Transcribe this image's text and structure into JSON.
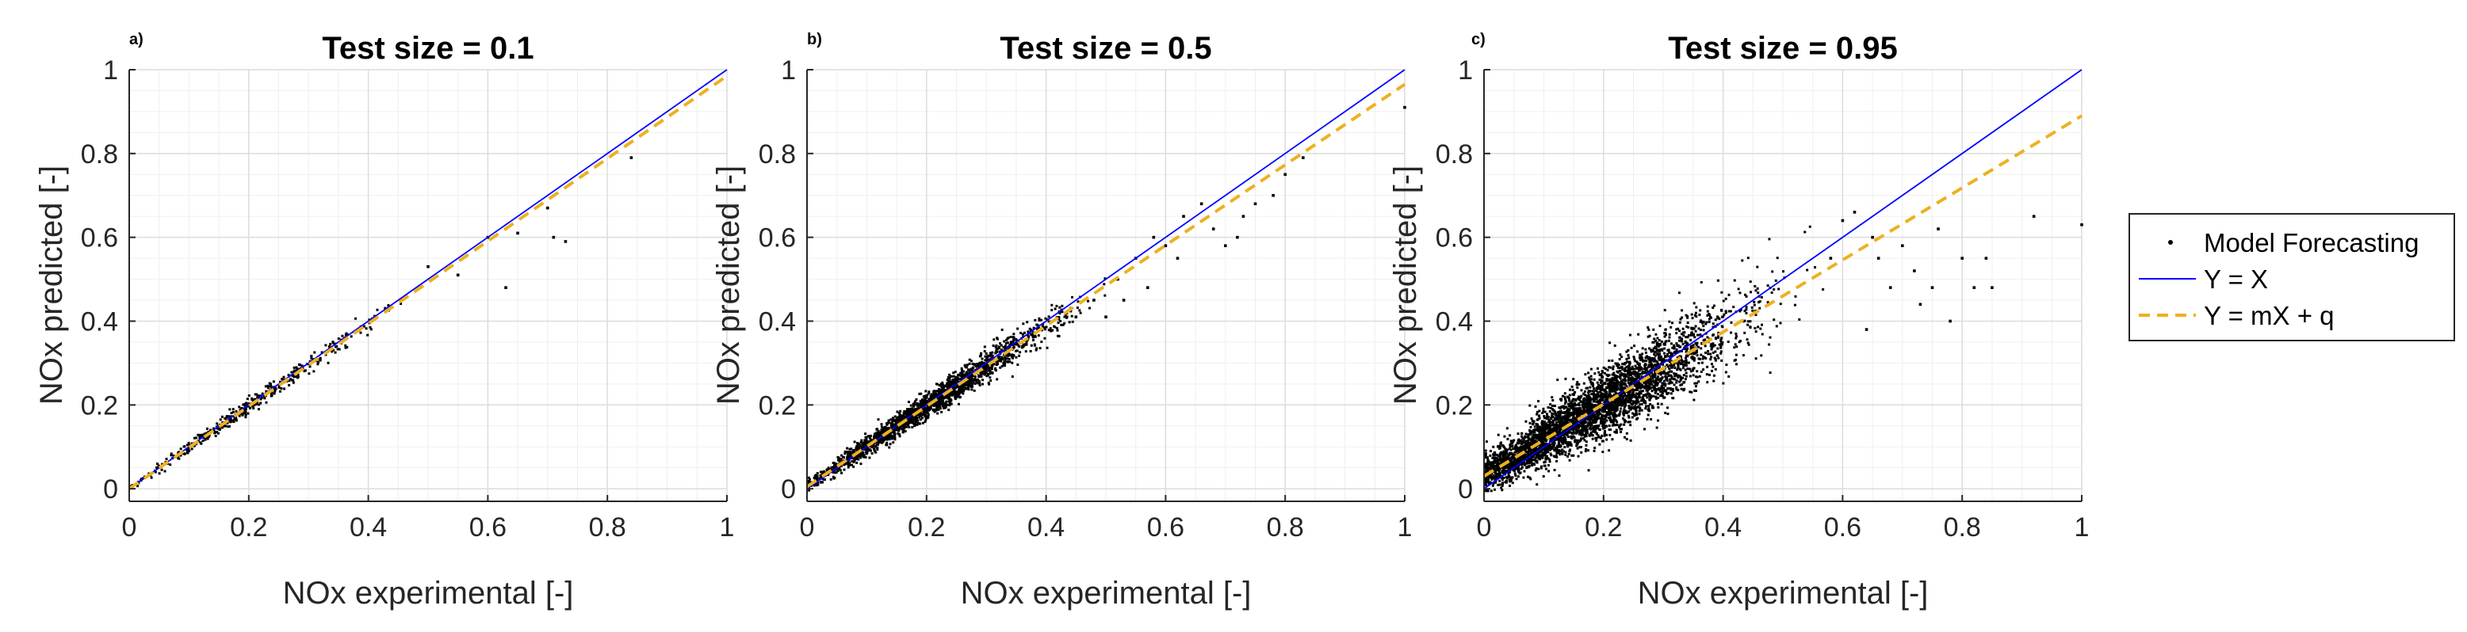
{
  "figure": {
    "background": "#ffffff"
  },
  "colors": {
    "yx_line": "#0000ff",
    "fit_line": "#edb120",
    "points": "#000000",
    "grid_major": "#dcdcdc",
    "grid_minor": "#efefef",
    "axis": "#262626"
  },
  "legend": {
    "location": "east-outside",
    "items": [
      {
        "label": "Model Forecasting",
        "style": "dot"
      },
      {
        "label": "Y = X",
        "style": "solid"
      },
      {
        "label": "Y = mX + q",
        "style": "dashed"
      }
    ]
  },
  "chart_data": [
    {
      "panel_letter": "a)",
      "type": "scatter",
      "title": "Test size = 0.1",
      "xlabel": "NOx experimental [-]",
      "ylabel": "NOx predicted [-]",
      "xlim": [
        0,
        1
      ],
      "ylim": [
        -0.03,
        1
      ],
      "xticks": [
        0,
        0.2,
        0.4,
        0.6,
        0.8,
        1
      ],
      "xtick_labels": [
        "0",
        "0.2",
        "0.4",
        "0.6",
        "0.8",
        "1"
      ],
      "yticks": [
        0,
        0.2,
        0.4,
        0.6,
        0.8,
        1
      ],
      "ytick_labels": [
        "0",
        "0.2",
        "0.4",
        "0.6",
        "0.8",
        "1"
      ],
      "grid": true,
      "series": [
        {
          "name": "Model Forecasting",
          "kind": "points",
          "n_points": 400,
          "spread": 0.014,
          "x_mean": 0.2,
          "x_sd": 0.1,
          "x_max": 0.46,
          "seed": 11,
          "outliers": [
            [
              0.5,
              0.53
            ],
            [
              0.55,
              0.51
            ],
            [
              0.6,
              0.6
            ],
            [
              0.63,
              0.48
            ],
            [
              0.65,
              0.61
            ],
            [
              0.7,
              0.67
            ],
            [
              0.71,
              0.6
            ],
            [
              0.73,
              0.59
            ],
            [
              0.84,
              0.79
            ]
          ]
        },
        {
          "name": "Y = X",
          "kind": "line",
          "slope": 1,
          "intercept": 0
        },
        {
          "name": "Y = mX + q",
          "kind": "line",
          "slope": 0.985,
          "intercept": 0.0
        }
      ]
    },
    {
      "panel_letter": "b)",
      "type": "scatter",
      "title": "Test size = 0.5",
      "xlabel": "NOx experimental [-]",
      "ylabel": "NOx predicted [-]",
      "xlim": [
        0,
        1
      ],
      "ylim": [
        -0.03,
        1
      ],
      "xticks": [
        0,
        0.2,
        0.4,
        0.6,
        0.8,
        1
      ],
      "xtick_labels": [
        "0",
        "0.2",
        "0.4",
        "0.6",
        "0.8",
        "1"
      ],
      "yticks": [
        0,
        0.2,
        0.4,
        0.6,
        0.8,
        1
      ],
      "ytick_labels": [
        "0",
        "0.2",
        "0.4",
        "0.6",
        "0.8",
        "1"
      ],
      "grid": true,
      "series": [
        {
          "name": "Model Forecasting",
          "kind": "points",
          "n_points": 2000,
          "spread": 0.024,
          "x_mean": 0.2,
          "x_sd": 0.1,
          "x_max": 0.5,
          "seed": 23,
          "outliers": [
            [
              0.52,
              0.5
            ],
            [
              0.55,
              0.55
            ],
            [
              0.58,
              0.6
            ],
            [
              0.6,
              0.58
            ],
            [
              0.62,
              0.55
            ],
            [
              0.63,
              0.65
            ],
            [
              0.66,
              0.68
            ],
            [
              0.68,
              0.62
            ],
            [
              0.7,
              0.58
            ],
            [
              0.72,
              0.6
            ],
            [
              0.73,
              0.65
            ],
            [
              0.75,
              0.68
            ],
            [
              0.78,
              0.7
            ],
            [
              0.8,
              0.75
            ],
            [
              0.83,
              0.79
            ],
            [
              0.45,
              0.41
            ],
            [
              0.48,
              0.45
            ],
            [
              0.5,
              0.41
            ],
            [
              0.53,
              0.45
            ],
            [
              0.57,
              0.48
            ],
            [
              1.0,
              0.91
            ]
          ]
        },
        {
          "name": "Y = X",
          "kind": "line",
          "slope": 1,
          "intercept": 0
        },
        {
          "name": "Y = mX + q",
          "kind": "line",
          "slope": 0.96,
          "intercept": 0.005
        }
      ]
    },
    {
      "panel_letter": "c)",
      "type": "scatter",
      "title": "Test size = 0.95",
      "xlabel": "NOx experimental [-]",
      "ylabel": "NOx predicted [-]",
      "xlim": [
        0,
        1
      ],
      "ylim": [
        -0.03,
        1
      ],
      "xticks": [
        0,
        0.2,
        0.4,
        0.6,
        0.8,
        1
      ],
      "xtick_labels": [
        "0",
        "0.2",
        "0.4",
        "0.6",
        "0.8",
        "1"
      ],
      "yticks": [
        0,
        0.2,
        0.4,
        0.6,
        0.8,
        1
      ],
      "ytick_labels": [
        "0",
        "0.2",
        "0.4",
        "0.6",
        "0.8",
        "1"
      ],
      "grid": true,
      "series": [
        {
          "name": "Model Forecasting",
          "kind": "points",
          "n_points": 3800,
          "spread": 0.065,
          "x_mean": 0.18,
          "x_sd": 0.12,
          "x_max": 0.62,
          "seed": 37,
          "outliers": [
            [
              0.62,
              0.66
            ],
            [
              0.65,
              0.6
            ],
            [
              0.66,
              0.55
            ],
            [
              0.68,
              0.48
            ],
            [
              0.7,
              0.58
            ],
            [
              0.72,
              0.52
            ],
            [
              0.73,
              0.44
            ],
            [
              0.75,
              0.48
            ],
            [
              0.76,
              0.62
            ],
            [
              0.78,
              0.4
            ],
            [
              0.8,
              0.55
            ],
            [
              0.82,
              0.48
            ],
            [
              0.84,
              0.55
            ],
            [
              0.85,
              0.48
            ],
            [
              0.92,
              0.65
            ],
            [
              1.0,
              0.63
            ],
            [
              0.58,
              0.55
            ],
            [
              0.6,
              0.64
            ],
            [
              0.64,
              0.38
            ]
          ]
        },
        {
          "name": "Y = X",
          "kind": "line",
          "slope": 1,
          "intercept": 0
        },
        {
          "name": "Y = mX + q",
          "kind": "line",
          "slope": 0.86,
          "intercept": 0.03
        }
      ]
    }
  ]
}
